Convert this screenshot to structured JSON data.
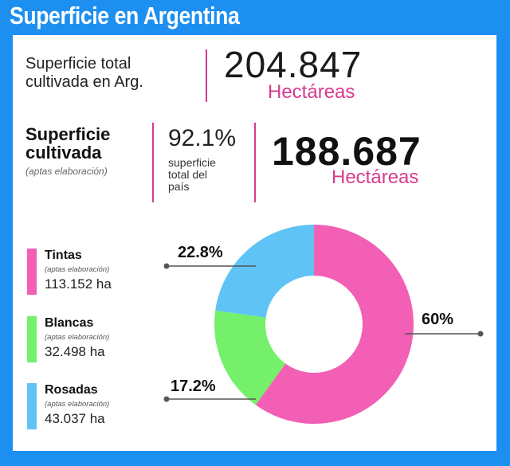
{
  "header": {
    "title": "Superficie en Argentina"
  },
  "total": {
    "label_line1": "Superficie total",
    "label_line2": "cultivada en Arg.",
    "value": "204.847",
    "unit": "Hectáreas"
  },
  "cultivated": {
    "title_line1": "Superficie",
    "title_line2": "cultivada",
    "subtitle": "(aptas elaboración)",
    "percent": "92.1%",
    "percent_desc_line1": "superficie",
    "percent_desc_line2": "total del",
    "percent_desc_line3": "país",
    "value": "188.687",
    "unit": "Hectáreas"
  },
  "colors": {
    "header_bg": "#1d8ff0",
    "accent": "#d63b8e",
    "tintas": "#f25fb4",
    "blancas": "#74f06b",
    "rosadas": "#5fc4f5"
  },
  "chart_data": {
    "type": "pie",
    "variant": "donut",
    "categories": [
      "Tintas",
      "Blancas",
      "Rosadas"
    ],
    "values": [
      113152,
      32498,
      43037
    ],
    "unit": "ha",
    "slice_labels": [
      "60%",
      "17.2%",
      "22.8%"
    ],
    "legend": [
      {
        "name": "Tintas",
        "sub": "(aptas elaboración)",
        "value": "113.152 ha"
      },
      {
        "name": "Blancas",
        "sub": "(aptas elaboración)",
        "value": "32.498 ha"
      },
      {
        "name": "Rosadas",
        "sub": "(aptas elaboración)",
        "value": "43.037 ha"
      }
    ],
    "legend_position": "left"
  }
}
